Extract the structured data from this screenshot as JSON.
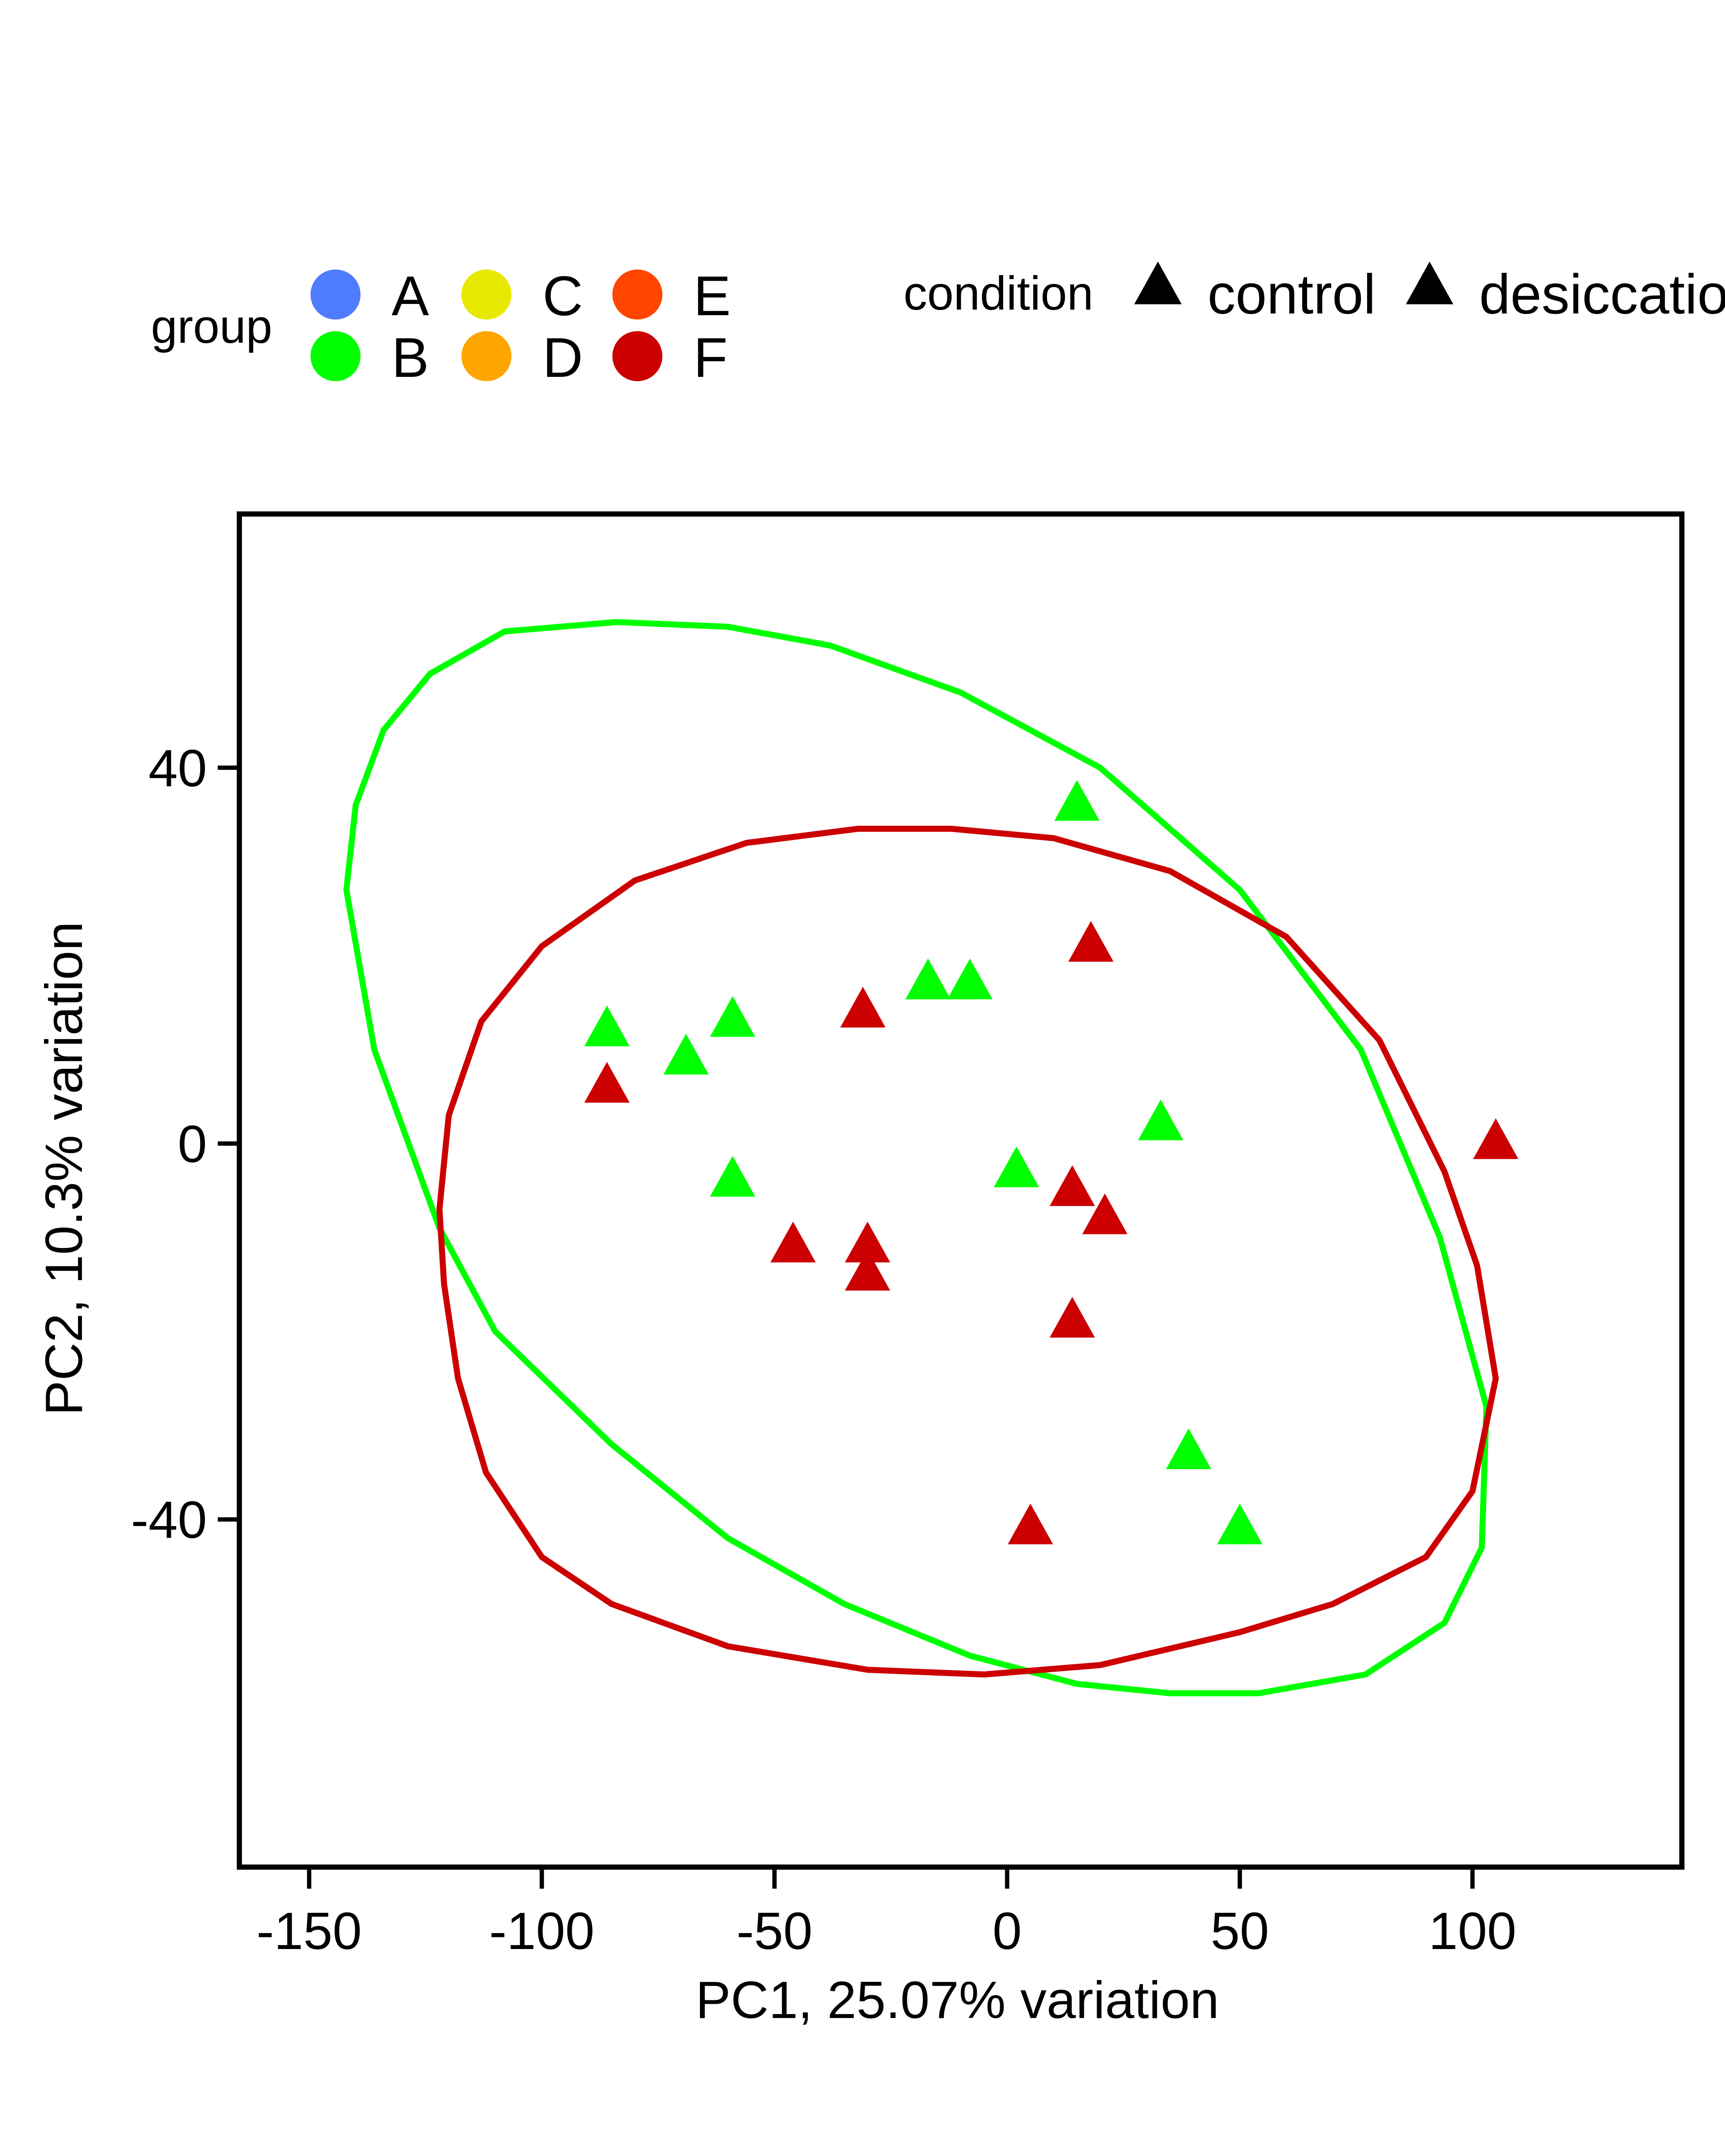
{
  "chart_data": {
    "type": "scatter",
    "xlabel": "PC1, 25.07% variation",
    "ylabel": "PC2, 10.3% variation",
    "xlim": [
      -165,
      145
    ],
    "ylim": [
      -77,
      67
    ],
    "x_ticks": [
      -150,
      -100,
      -50,
      0,
      50,
      100
    ],
    "y_ticks": [
      40,
      0,
      -40
    ],
    "grid": false,
    "legend": {
      "placement": "top",
      "group_title": "group",
      "groups": [
        {
          "name": "A",
          "color": "#4f7cff"
        },
        {
          "name": "B",
          "color": "#00ff00"
        },
        {
          "name": "C",
          "color": "#e8e800"
        },
        {
          "name": "D",
          "color": "#ffa500"
        },
        {
          "name": "E",
          "color": "#ff4500"
        },
        {
          "name": "F",
          "color": "#cc0000"
        }
      ],
      "condition_title": "condition",
      "conditions": [
        {
          "name": "control",
          "shape": "triangle"
        },
        {
          "name": "desiccatio",
          "shape": "triangle"
        }
      ]
    },
    "series": [
      {
        "name": "B",
        "color": "#00ff00",
        "points": [
          [
            15,
            36
          ],
          [
            -86,
            12
          ],
          [
            -59,
            13
          ],
          [
            -69,
            9
          ],
          [
            -17,
            17
          ],
          [
            -8,
            17
          ],
          [
            -59,
            -4
          ],
          [
            2,
            -3
          ],
          [
            33,
            2
          ],
          [
            39,
            -33
          ],
          [
            50,
            -41
          ]
        ]
      },
      {
        "name": "F",
        "color": "#cc0000",
        "points": [
          [
            18,
            21
          ],
          [
            -31,
            14
          ],
          [
            -86,
            6
          ],
          [
            105,
            0
          ],
          [
            14,
            -5
          ],
          [
            21,
            -8
          ],
          [
            -46,
            -11
          ],
          [
            -30,
            -11
          ],
          [
            -30,
            -14
          ],
          [
            14,
            -19
          ],
          [
            5,
            -41
          ]
        ]
      }
    ],
    "ellipses": [
      {
        "group": "B",
        "color": "#00ff00",
        "points": [
          [
            -142,
            27
          ],
          [
            -140,
            36
          ],
          [
            -134,
            44
          ],
          [
            -124,
            50
          ],
          [
            -108,
            54.5
          ],
          [
            -84,
            55.5
          ],
          [
            -60,
            55
          ],
          [
            -38,
            53
          ],
          [
            -10,
            48
          ],
          [
            20,
            40
          ],
          [
            50,
            27
          ],
          [
            76,
            10
          ],
          [
            93,
            -10
          ],
          [
            103,
            -28
          ],
          [
            102,
            -43
          ],
          [
            94,
            -51
          ],
          [
            77,
            -56.5
          ],
          [
            54,
            -58.5
          ],
          [
            35,
            -58.5
          ],
          [
            15,
            -57.5
          ],
          [
            -8,
            -54.5
          ],
          [
            -35,
            -49
          ],
          [
            -60,
            -42
          ],
          [
            -85,
            -32
          ],
          [
            -110,
            -20
          ],
          [
            -122,
            -9
          ],
          [
            -136,
            10
          ]
        ]
      },
      {
        "group": "F",
        "color": "#cc0000",
        "points": [
          [
            -122,
            -7
          ],
          [
            -120,
            3
          ],
          [
            -113,
            13
          ],
          [
            -100,
            21
          ],
          [
            -80,
            28
          ],
          [
            -56,
            32
          ],
          [
            -32,
            33.5
          ],
          [
            -12,
            33.5
          ],
          [
            10,
            32.5
          ],
          [
            35,
            29
          ],
          [
            60,
            22
          ],
          [
            80,
            11
          ],
          [
            94,
            -3
          ],
          [
            101,
            -13
          ],
          [
            105,
            -25
          ],
          [
            100,
            -37
          ],
          [
            90,
            -44
          ],
          [
            70,
            -49
          ],
          [
            50,
            -52
          ],
          [
            20,
            -55.5
          ],
          [
            -5,
            -56.5
          ],
          [
            -30,
            -56
          ],
          [
            -60,
            -53.5
          ],
          [
            -85,
            -49
          ],
          [
            -100,
            -44
          ],
          [
            -112,
            -35
          ],
          [
            -118,
            -25
          ],
          [
            -121,
            -15
          ]
        ]
      }
    ]
  }
}
